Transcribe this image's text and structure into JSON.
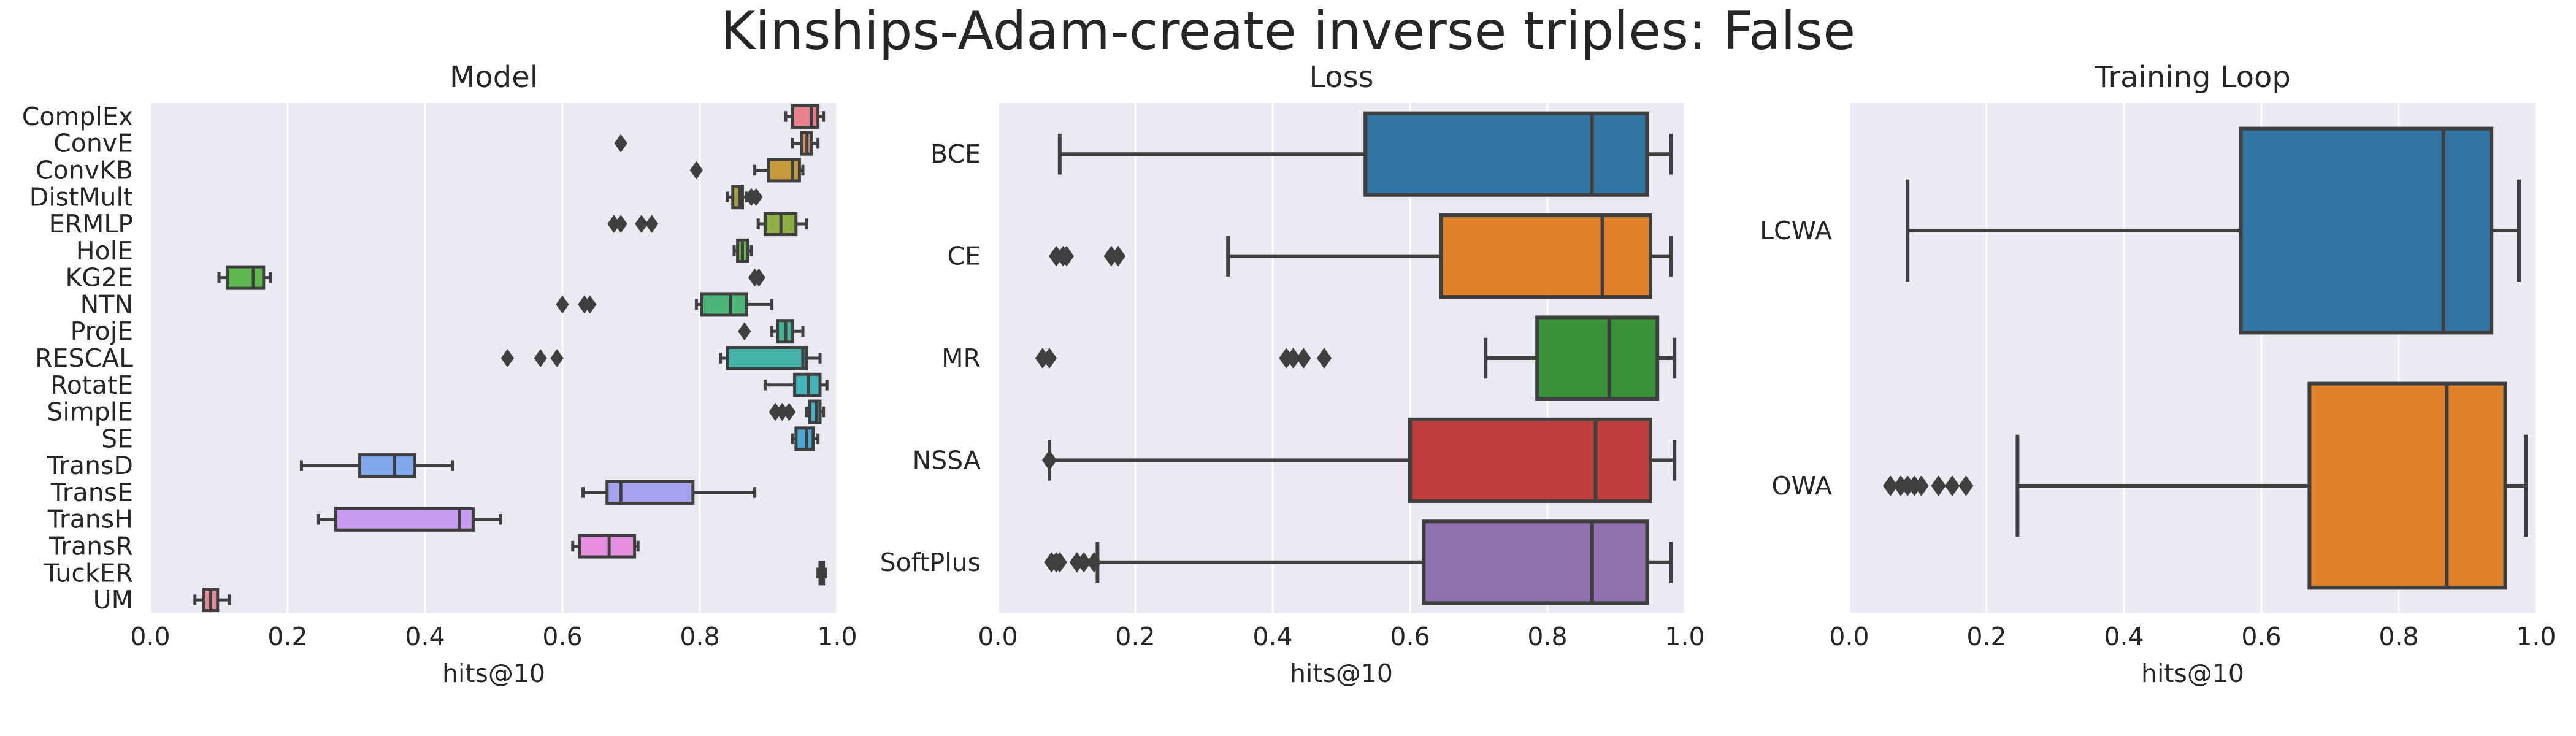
{
  "figure_title": "Kinships-Adam-create inverse triples: False",
  "chart_data": [
    {
      "type": "box",
      "orientation": "horizontal",
      "title": "Model",
      "xlabel": "hits@10",
      "xlim": [
        0.0,
        1.0
      ],
      "xticks": [
        "0.0",
        "0.2",
        "0.4",
        "0.6",
        "0.8",
        "1.0"
      ],
      "grid": true,
      "categories": [
        "ComplEx",
        "ConvE",
        "ConvKB",
        "DistMult",
        "ERMLP",
        "HolE",
        "KG2E",
        "NTN",
        "ProjE",
        "RESCAL",
        "RotatE",
        "SimplE",
        "SE",
        "TransD",
        "TransE",
        "TransH",
        "TransR",
        "TuckER",
        "UM"
      ],
      "colors": [
        "#e8818c",
        "#d9936b",
        "#c69a3b",
        "#a5a542",
        "#8eae45",
        "#6ab04c",
        "#5fb84e",
        "#4ab577",
        "#46b497",
        "#43b3a8",
        "#44b2b9",
        "#48b0c8",
        "#4ba8d6",
        "#7fa9ec",
        "#a7a2f0",
        "#c799f0",
        "#e68fe0",
        "#ec8cbd",
        "#e2899c"
      ],
      "boxes": [
        {
          "whislo": 0.925,
          "q1": 0.935,
          "med": 0.962,
          "q3": 0.972,
          "whishi": 0.98,
          "fliers": []
        },
        {
          "whislo": 0.935,
          "q1": 0.948,
          "med": 0.956,
          "q3": 0.962,
          "whishi": 0.972,
          "fliers": [
            0.685
          ]
        },
        {
          "whislo": 0.88,
          "q1": 0.9,
          "med": 0.935,
          "q3": 0.945,
          "whishi": 0.95,
          "fliers": [
            0.795
          ]
        },
        {
          "whislo": 0.84,
          "q1": 0.848,
          "med": 0.858,
          "q3": 0.862,
          "whishi": 0.868,
          "fliers": [
            0.875,
            0.882
          ]
        },
        {
          "whislo": 0.885,
          "q1": 0.895,
          "med": 0.918,
          "q3": 0.94,
          "whishi": 0.955,
          "fliers": [
            0.675,
            0.685,
            0.715,
            0.73
          ]
        },
        {
          "whislo": 0.85,
          "q1": 0.855,
          "med": 0.862,
          "q3": 0.87,
          "whishi": 0.875,
          "fliers": []
        },
        {
          "whislo": 0.1,
          "q1": 0.112,
          "med": 0.15,
          "q3": 0.165,
          "whishi": 0.175,
          "fliers": [
            0.88,
            0.886
          ]
        },
        {
          "whislo": 0.795,
          "q1": 0.803,
          "med": 0.845,
          "q3": 0.868,
          "whishi": 0.905,
          "fliers": [
            0.6,
            0.632,
            0.64
          ]
        },
        {
          "whislo": 0.905,
          "q1": 0.913,
          "med": 0.925,
          "q3": 0.935,
          "whishi": 0.95,
          "fliers": [
            0.865
          ]
        },
        {
          "whislo": 0.83,
          "q1": 0.84,
          "med": 0.95,
          "q3": 0.955,
          "whishi": 0.975,
          "fliers": [
            0.52,
            0.568,
            0.592
          ]
        },
        {
          "whislo": 0.895,
          "q1": 0.938,
          "med": 0.958,
          "q3": 0.975,
          "whishi": 0.985,
          "fliers": []
        },
        {
          "whislo": 0.955,
          "q1": 0.96,
          "med": 0.97,
          "q3": 0.975,
          "whishi": 0.98,
          "fliers": [
            0.91,
            0.92,
            0.93
          ]
        },
        {
          "whislo": 0.935,
          "q1": 0.94,
          "med": 0.955,
          "q3": 0.965,
          "whishi": 0.972,
          "fliers": []
        },
        {
          "whislo": 0.22,
          "q1": 0.305,
          "med": 0.355,
          "q3": 0.385,
          "whishi": 0.44,
          "fliers": []
        },
        {
          "whislo": 0.63,
          "q1": 0.665,
          "med": 0.685,
          "q3": 0.79,
          "whishi": 0.88,
          "fliers": []
        },
        {
          "whislo": 0.245,
          "q1": 0.27,
          "med": 0.45,
          "q3": 0.47,
          "whishi": 0.51,
          "fliers": []
        },
        {
          "whislo": 0.615,
          "q1": 0.625,
          "med": 0.668,
          "q3": 0.705,
          "whishi": 0.71,
          "fliers": []
        },
        {
          "whislo": 0.972,
          "q1": 0.975,
          "med": 0.978,
          "q3": 0.98,
          "whishi": 0.983,
          "fliers": []
        },
        {
          "whislo": 0.065,
          "q1": 0.078,
          "med": 0.088,
          "q3": 0.098,
          "whishi": 0.115,
          "fliers": []
        }
      ]
    },
    {
      "type": "box",
      "orientation": "horizontal",
      "title": "Loss",
      "xlabel": "hits@10",
      "xlim": [
        0.0,
        1.0
      ],
      "xticks": [
        "0.0",
        "0.2",
        "0.4",
        "0.6",
        "0.8",
        "1.0"
      ],
      "grid": true,
      "categories": [
        "BCE",
        "CE",
        "MR",
        "NSSA",
        "SoftPlus"
      ],
      "colors": [
        "#3274a1",
        "#e1812c",
        "#3a923a",
        "#c03d3e",
        "#9372b2"
      ],
      "boxes": [
        {
          "whislo": 0.09,
          "q1": 0.535,
          "med": 0.865,
          "q3": 0.945,
          "whishi": 0.98,
          "fliers": []
        },
        {
          "whislo": 0.335,
          "q1": 0.645,
          "med": 0.88,
          "q3": 0.95,
          "whishi": 0.98,
          "fliers": [
            0.085,
            0.095,
            0.1,
            0.165,
            0.175
          ]
        },
        {
          "whislo": 0.71,
          "q1": 0.785,
          "med": 0.89,
          "q3": 0.96,
          "whishi": 0.985,
          "fliers": [
            0.065,
            0.075,
            0.42,
            0.43,
            0.445,
            0.475
          ]
        },
        {
          "whislo": 0.075,
          "q1": 0.6,
          "med": 0.87,
          "q3": 0.95,
          "whishi": 0.985,
          "fliers": [
            0.075
          ]
        },
        {
          "whislo": 0.145,
          "q1": 0.62,
          "med": 0.865,
          "q3": 0.945,
          "whishi": 0.98,
          "fliers": [
            0.078,
            0.085,
            0.09,
            0.115,
            0.125,
            0.14
          ]
        }
      ]
    },
    {
      "type": "box",
      "orientation": "horizontal",
      "title": "Training Loop",
      "xlabel": "hits@10",
      "xlim": [
        0.0,
        1.0
      ],
      "xticks": [
        "0.0",
        "0.2",
        "0.4",
        "0.6",
        "0.8",
        "1.0"
      ],
      "grid": true,
      "categories": [
        "LCWA",
        "OWA"
      ],
      "colors": [
        "#3274a1",
        "#e1812c"
      ],
      "boxes": [
        {
          "whislo": 0.085,
          "q1": 0.57,
          "med": 0.865,
          "q3": 0.935,
          "whishi": 0.975,
          "fliers": []
        },
        {
          "whislo": 0.245,
          "q1": 0.67,
          "med": 0.87,
          "q3": 0.955,
          "whishi": 0.985,
          "fliers": [
            0.06,
            0.075,
            0.085,
            0.095,
            0.105,
            0.13,
            0.15,
            0.17
          ]
        }
      ]
    }
  ]
}
